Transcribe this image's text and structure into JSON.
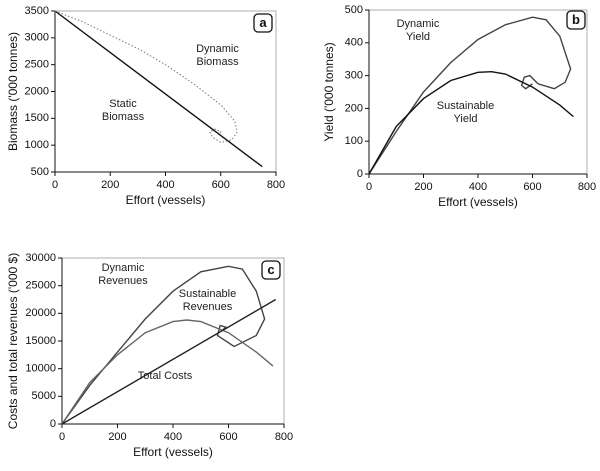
{
  "chart_data": [
    {
      "type": "line",
      "panel_label": "a",
      "x_label": "Effort (vessels)",
      "y_label": "Biomass ('000 tonnes)",
      "xlim": [
        0,
        800
      ],
      "ylim": [
        500,
        3500
      ],
      "xticks": [
        0,
        200,
        400,
        600,
        800
      ],
      "yticks": [
        500,
        1000,
        1500,
        2000,
        2500,
        3000,
        3500
      ],
      "series": [
        {
          "name": "Static Biomass",
          "color": "#111111",
          "style": "solid",
          "x": [
            0,
            750
          ],
          "values": [
            3500,
            600
          ]
        },
        {
          "name": "Dynamic Biomass",
          "color": "#777777",
          "style": "dotted",
          "x": [
            0,
            100,
            200,
            300,
            400,
            500,
            600,
            650,
            660,
            640,
            600,
            570,
            560,
            580,
            600,
            590
          ],
          "values": [
            3500,
            3300,
            3050,
            2800,
            2500,
            2150,
            1750,
            1450,
            1250,
            1100,
            1050,
            1150,
            1250,
            1300,
            1250,
            1200
          ]
        }
      ]
    },
    {
      "type": "line",
      "panel_label": "b",
      "x_label": "Effort (vessels)",
      "y_label": "Yield ('000 tonnes)",
      "xlim": [
        0,
        800
      ],
      "ylim": [
        0,
        500
      ],
      "xticks": [
        0,
        200,
        400,
        600,
        800
      ],
      "yticks": [
        0,
        100,
        200,
        300,
        400,
        500
      ],
      "series": [
        {
          "name": "Dynamic Yield",
          "color": "#444444",
          "style": "solid",
          "x": [
            0,
            100,
            200,
            300,
            400,
            500,
            600,
            650,
            700,
            740,
            720,
            680,
            620,
            590,
            570,
            560,
            575,
            600
          ],
          "values": [
            0,
            130,
            250,
            340,
            410,
            455,
            478,
            470,
            420,
            320,
            280,
            260,
            275,
            300,
            295,
            270,
            260,
            275
          ]
        },
        {
          "name": "Sustainable Yield",
          "color": "#111111",
          "style": "solid",
          "x": [
            0,
            100,
            200,
            300,
            400,
            450,
            500,
            600,
            700,
            750
          ],
          "values": [
            0,
            145,
            230,
            285,
            310,
            312,
            305,
            265,
            210,
            175
          ]
        }
      ]
    },
    {
      "type": "line",
      "panel_label": "c",
      "x_label": "Effort (vessels)",
      "y_label": "Costs and total revenues ('000 $)",
      "xlim": [
        0,
        800
      ],
      "ylim": [
        0,
        30000
      ],
      "xticks": [
        0,
        200,
        400,
        600,
        800
      ],
      "yticks": [
        0,
        5000,
        10000,
        15000,
        20000,
        25000,
        30000
      ],
      "series": [
        {
          "name": "Dynamic Revenues",
          "color": "#444444",
          "style": "solid",
          "x": [
            0,
            100,
            200,
            300,
            400,
            500,
            600,
            650,
            700,
            730,
            700,
            620,
            560,
            570,
            590,
            580
          ],
          "values": [
            0,
            7000,
            13000,
            19000,
            24000,
            27500,
            28500,
            28000,
            24000,
            19000,
            16000,
            14000,
            16000,
            17800,
            17500,
            17000
          ]
        },
        {
          "name": "Sustainable Revenues",
          "color": "#666666",
          "style": "solid",
          "x": [
            0,
            100,
            200,
            300,
            400,
            450,
            500,
            600,
            700,
            760
          ],
          "values": [
            0,
            7500,
            12500,
            16500,
            18500,
            18800,
            18500,
            16500,
            13000,
            10500
          ]
        },
        {
          "name": "Total Costs",
          "color": "#222222",
          "style": "solid",
          "x": [
            0,
            770
          ],
          "values": [
            0,
            22500
          ]
        }
      ]
    }
  ]
}
